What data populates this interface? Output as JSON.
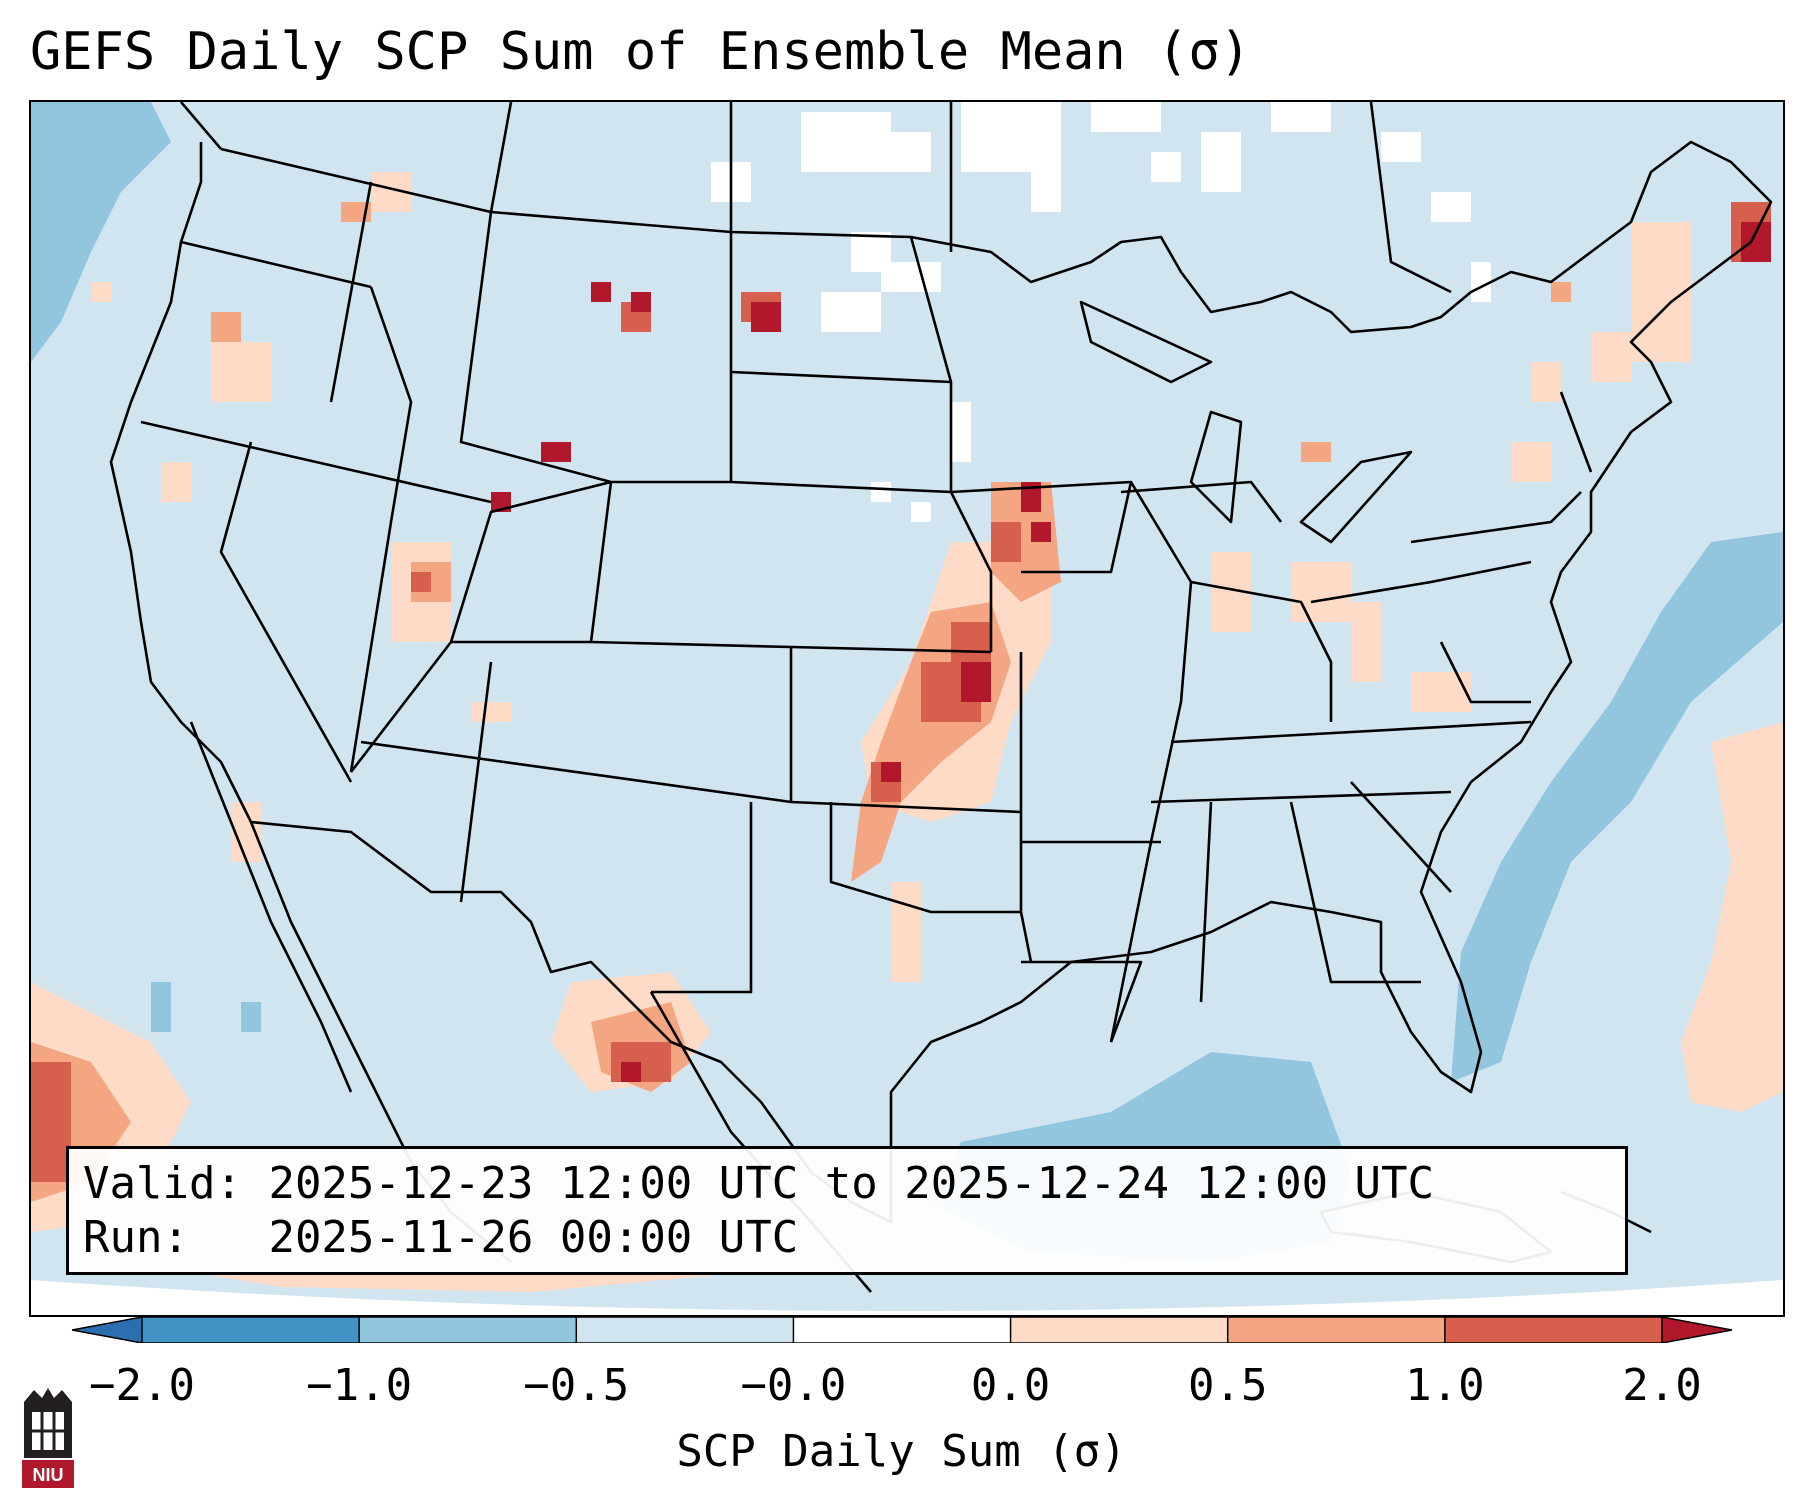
{
  "title": "GEFS Daily SCP Sum of Ensemble Mean (σ)",
  "valid_label": "Valid:",
  "valid_value": "2025-12-23 12:00 UTC to 2025-12-24 12:00 UTC",
  "run_label": "Run:",
  "run_value": "2025-11-26 00:00 UTC",
  "colorbar": {
    "label": "SCP Daily Sum (σ)",
    "ticks": [
      "−2.0",
      "−1.0",
      "−0.5",
      "−0.0",
      "0.0",
      "0.5",
      "1.0",
      "2.0"
    ],
    "bins": [
      {
        "from": "< -2.0",
        "color": "#2c6fb0"
      },
      {
        "from": "-2.0 to -1.0",
        "color": "#4292c6"
      },
      {
        "from": "-1.0 to -0.5",
        "color": "#92c5de"
      },
      {
        "from": "-0.5 to -0.0",
        "color": "#d1e5f0"
      },
      {
        "from": "-0.0 to 0.0",
        "color": "#ffffff"
      },
      {
        "from": "0.0 to 0.5",
        "color": "#fddbc7"
      },
      {
        "from": "0.5 to 1.0",
        "color": "#f4a582"
      },
      {
        "from": "1.0 to 2.0",
        "color": "#d6604d"
      },
      {
        "from": "> 2.0",
        "color": "#b2182b"
      }
    ]
  },
  "map": {
    "region": "Contiguous United States with state borders",
    "background_color": "#d1e5f0",
    "border_color": "#000000"
  },
  "logo": {
    "text": "NIU",
    "color": "#b2182b"
  }
}
